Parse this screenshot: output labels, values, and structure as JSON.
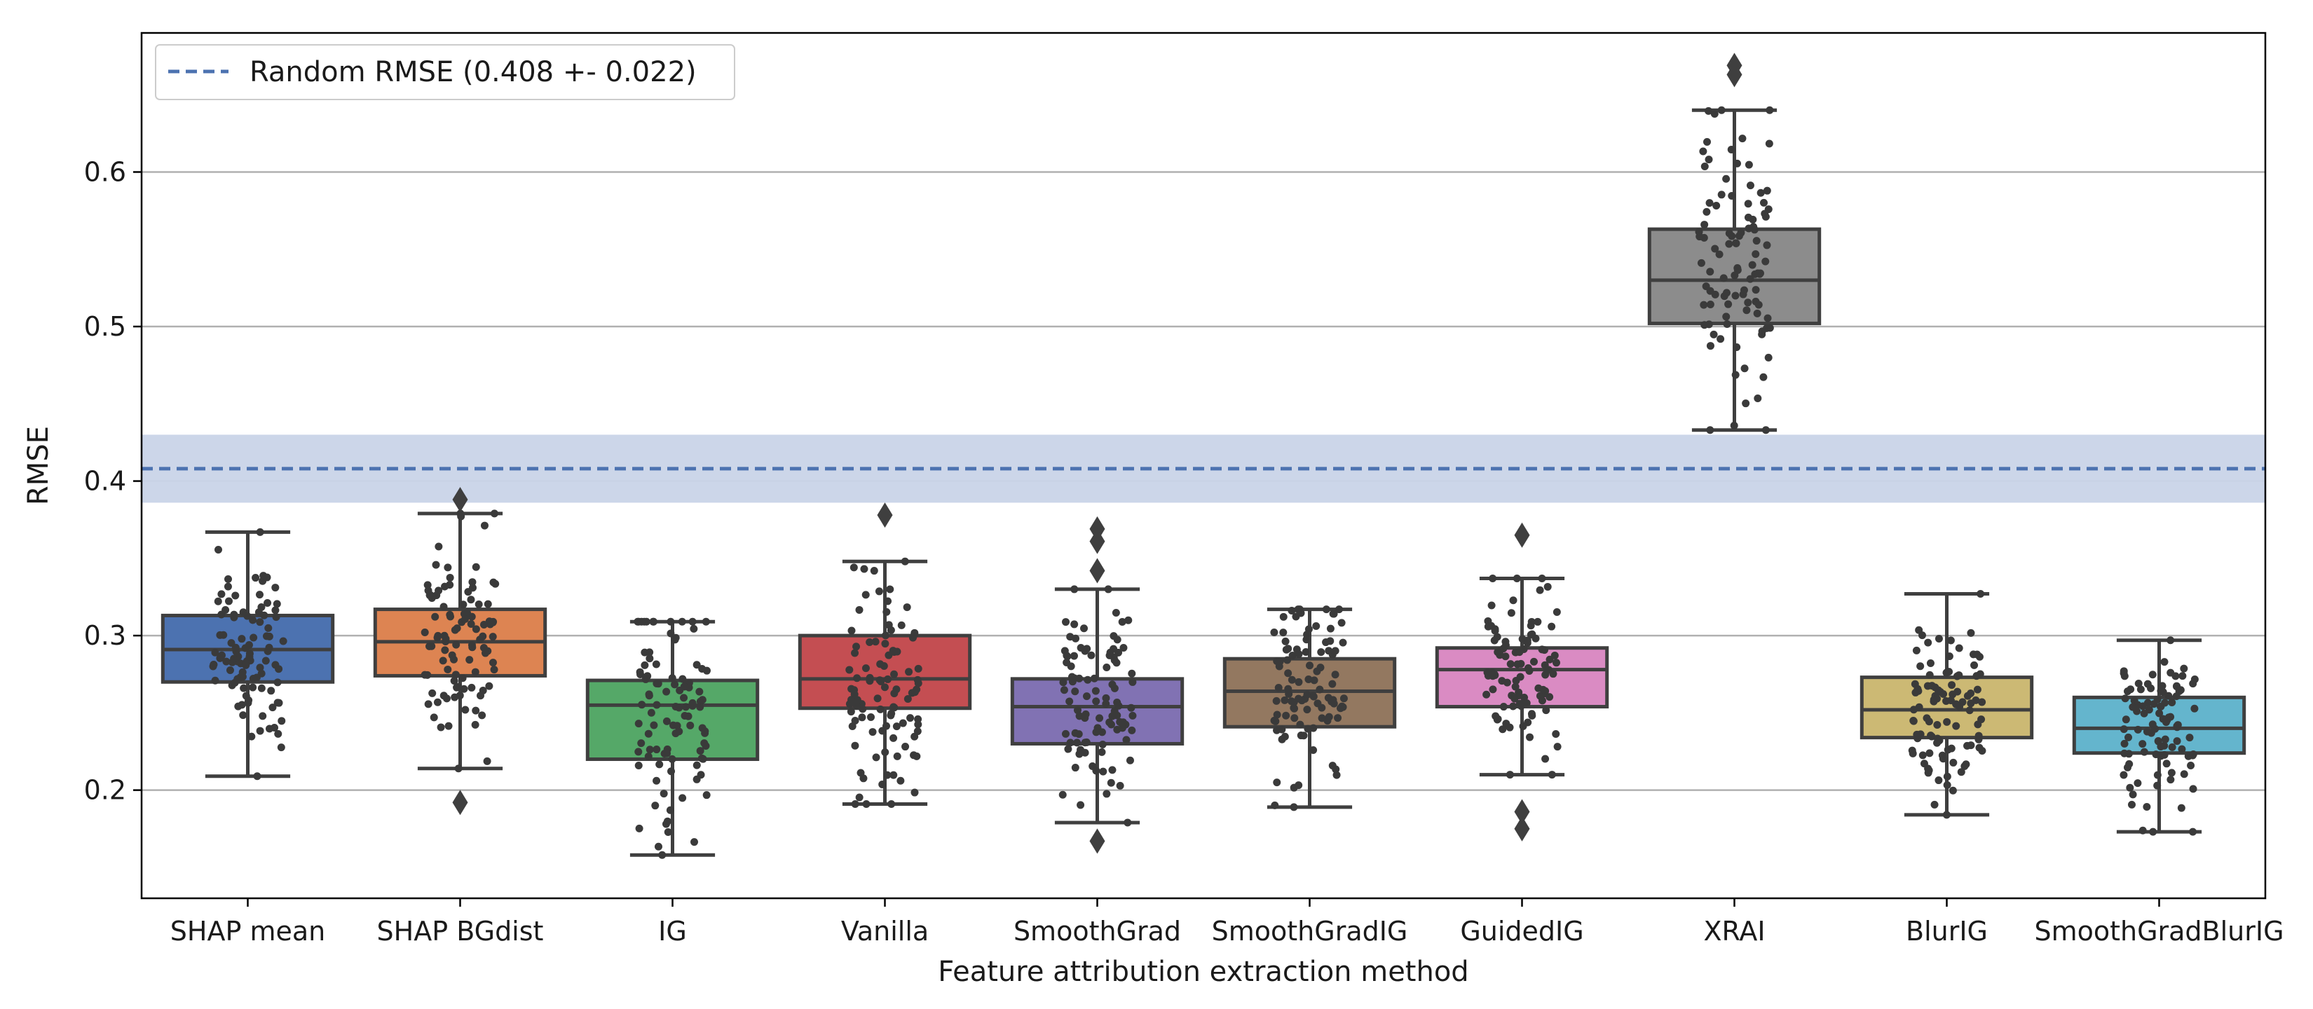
{
  "chart_data": {
    "type": "box",
    "xlabel": "Feature attribution extraction method",
    "ylabel": "RMSE",
    "ylim": [
      0.13,
      0.69
    ],
    "yticks": [
      0.2,
      0.3,
      0.4,
      0.5,
      0.6
    ],
    "grid": "horizontal",
    "legend": {
      "placement": "top-left",
      "entries": [
        {
          "label": "Random RMSE (0.408 +- 0.022)",
          "style": "dashed-line",
          "color": "#4c72b0"
        }
      ]
    },
    "reference_line": {
      "value": 0.408,
      "band": [
        0.386,
        0.43
      ],
      "color": "#4c72b0",
      "band_color": "#c9d4e8"
    },
    "categories": [
      "SHAP mean",
      "SHAP BGdist",
      "IG",
      "Vanilla",
      "SmoothGrad",
      "SmoothGradIG",
      "GuidedIG",
      "XRAI",
      "BlurIG",
      "SmoothGradBlurIG"
    ],
    "boxes": [
      {
        "category": "SHAP mean",
        "color": "#4c72b0",
        "whisker_low": 0.209,
        "q1": 0.27,
        "median": 0.291,
        "q3": 0.313,
        "whisker_high": 0.367,
        "outliers": []
      },
      {
        "category": "SHAP BGdist",
        "color": "#dd8452",
        "whisker_low": 0.214,
        "q1": 0.274,
        "median": 0.296,
        "q3": 0.317,
        "whisker_high": 0.379,
        "outliers": [
          0.388,
          0.192
        ]
      },
      {
        "category": "IG",
        "color": "#55a868",
        "whisker_low": 0.158,
        "q1": 0.22,
        "median": 0.255,
        "q3": 0.271,
        "whisker_high": 0.309,
        "outliers": []
      },
      {
        "category": "Vanilla",
        "color": "#c44e52",
        "whisker_low": 0.191,
        "q1": 0.253,
        "median": 0.272,
        "q3": 0.3,
        "whisker_high": 0.348,
        "outliers": [
          0.378
        ]
      },
      {
        "category": "SmoothGrad",
        "color": "#8172b3",
        "whisker_low": 0.179,
        "q1": 0.23,
        "median": 0.254,
        "q3": 0.272,
        "whisker_high": 0.33,
        "outliers": [
          0.369,
          0.361,
          0.342,
          0.167
        ]
      },
      {
        "category": "SmoothGradIG",
        "color": "#937860",
        "whisker_low": 0.189,
        "q1": 0.241,
        "median": 0.264,
        "q3": 0.285,
        "whisker_high": 0.317,
        "outliers": []
      },
      {
        "category": "GuidedIG",
        "color": "#da8bc3",
        "whisker_low": 0.21,
        "q1": 0.254,
        "median": 0.278,
        "q3": 0.292,
        "whisker_high": 0.337,
        "outliers": [
          0.365,
          0.186,
          0.175
        ]
      },
      {
        "category": "XRAI",
        "color": "#8c8c8c",
        "whisker_low": 0.433,
        "q1": 0.502,
        "median": 0.53,
        "q3": 0.563,
        "whisker_high": 0.64,
        "outliers": [
          0.669,
          0.663
        ]
      },
      {
        "category": "BlurIG",
        "color": "#ccb974",
        "whisker_low": 0.184,
        "q1": 0.234,
        "median": 0.252,
        "q3": 0.273,
        "whisker_high": 0.327,
        "outliers": []
      },
      {
        "category": "SmoothGradBlurIG",
        "color": "#64b5cd",
        "whisker_low": 0.173,
        "q1": 0.224,
        "median": 0.24,
        "q3": 0.26,
        "whisker_high": 0.297,
        "outliers": []
      }
    ],
    "points_per_box": 100
  }
}
